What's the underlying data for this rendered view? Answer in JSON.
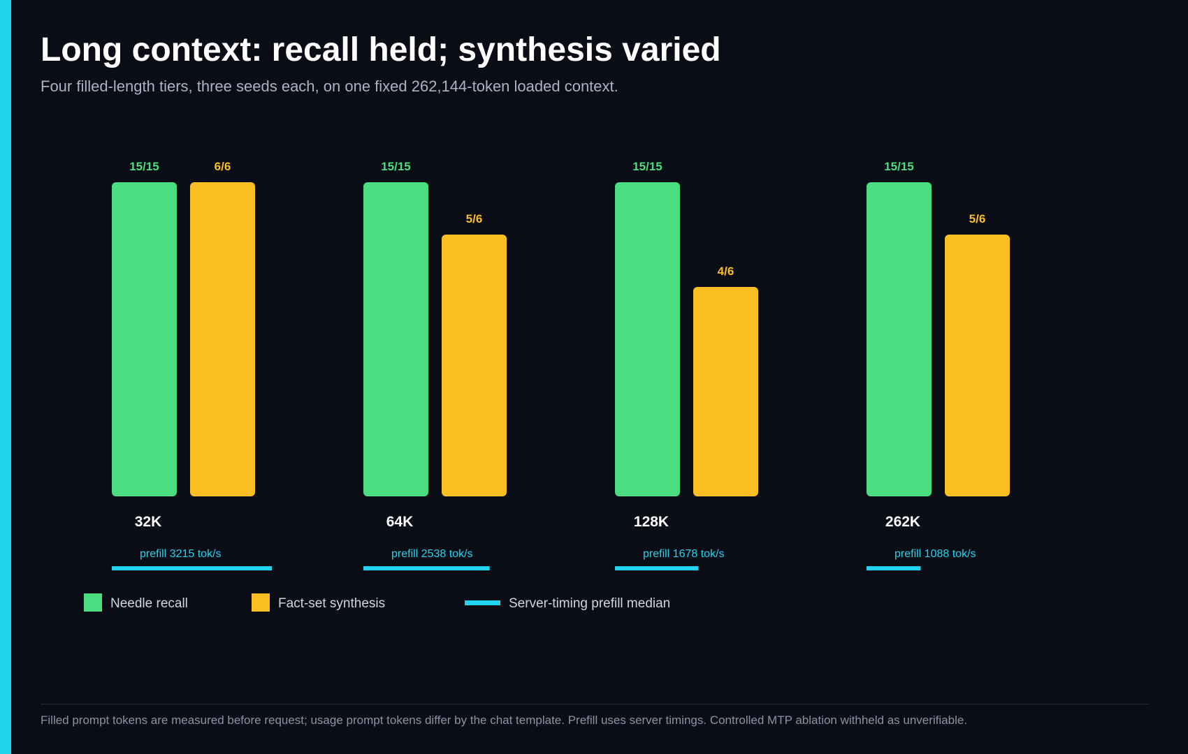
{
  "page": {
    "title": "Long context: recall held; synthesis varied",
    "subtitle": "Four filled-length tiers, three seeds each, on one fixed 262,144-token loaded context.",
    "footnote": "Filled prompt tokens are measured before request; usage prompt tokens differ by the chat template. Prefill uses server timings. Controlled MTP ablation withheld as unverifiable."
  },
  "colors": {
    "background": "#0a0d16",
    "accent": "#22d3ee",
    "needle": "#4ade80",
    "synthesis": "#fbbf24",
    "prefill": "#22d3ee",
    "category_text": "#ffffff",
    "legend_text": "#cfd5e2"
  },
  "chart_data": {
    "type": "bar",
    "categories": [
      "32K",
      "64K",
      "128K",
      "262K"
    ],
    "series": [
      {
        "name": "Needle recall",
        "values": [
          1.0,
          1.0,
          1.0,
          1.0
        ],
        "labels": [
          "15/15",
          "15/15",
          "15/15",
          "15/15"
        ]
      },
      {
        "name": "Fact-set synthesis",
        "values": [
          1.0,
          0.8333,
          0.6667,
          0.8333
        ],
        "labels": [
          "6/6",
          "5/6",
          "4/6",
          "5/6"
        ]
      }
    ],
    "ylim": [
      0,
      1
    ],
    "prefill": {
      "name": "Server-timing prefill median",
      "values": [
        3215,
        2538,
        1678,
        1088
      ],
      "labels": [
        "prefill 3215 tok/s",
        "prefill 2538 tok/s",
        "prefill 1678 tok/s",
        "prefill 1088 tok/s"
      ]
    },
    "legend_position": "bottom-left",
    "grid": false
  }
}
